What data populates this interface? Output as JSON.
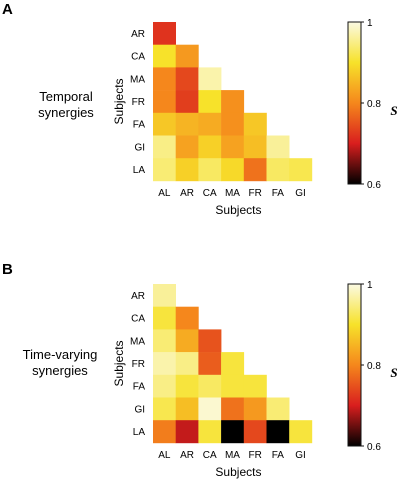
{
  "colorscale": {
    "stops": [
      {
        "v": 0.6,
        "color": "#000000"
      },
      {
        "v": 0.7,
        "color": "#d91e1e"
      },
      {
        "v": 0.8,
        "color": "#f5871c"
      },
      {
        "v": 0.9,
        "color": "#f7e22a"
      },
      {
        "v": 1.0,
        "color": "#fbfae3"
      }
    ]
  },
  "chart_data": [
    {
      "type": "heatmap",
      "panel": "A",
      "side_label": [
        "Temporal",
        "synergies"
      ],
      "xlabel": "Subjects",
      "ylabel": "Subjects",
      "x_categories": [
        "AL",
        "AR",
        "CA",
        "MA",
        "FR",
        "FA",
        "GI"
      ],
      "y_categories": [
        "AR",
        "CA",
        "MA",
        "FR",
        "FA",
        "GI",
        "LA"
      ],
      "values": [
        [
          0.72
        ],
        [
          0.9,
          0.82
        ],
        [
          0.8,
          0.74,
          0.97
        ],
        [
          0.8,
          0.73,
          0.9,
          0.81
        ],
        [
          0.87,
          0.85,
          0.84,
          0.81,
          0.87
        ],
        [
          0.95,
          0.83,
          0.88,
          0.83,
          0.86,
          0.96
        ],
        [
          0.94,
          0.88,
          0.93,
          0.89,
          0.78,
          0.93,
          0.92
        ]
      ],
      "colorbar": {
        "label": "S",
        "min": 0.6,
        "max": 1,
        "ticks": [
          "1",
          "0.8",
          "0.6"
        ]
      }
    },
    {
      "type": "heatmap",
      "panel": "B",
      "side_label": [
        "Time-varying",
        "synergies"
      ],
      "xlabel": "Subjects",
      "ylabel": "Subjects",
      "x_categories": [
        "AL",
        "AR",
        "CA",
        "MA",
        "FR",
        "FA",
        "GI"
      ],
      "y_categories": [
        "AR",
        "CA",
        "MA",
        "FR",
        "FA",
        "GI",
        "LA"
      ],
      "values": [
        [
          0.96
        ],
        [
          0.91,
          0.8
        ],
        [
          0.94,
          0.84,
          0.75
        ],
        [
          0.97,
          0.95,
          0.76,
          0.91
        ],
        [
          0.95,
          0.91,
          0.93,
          0.91,
          0.91
        ],
        [
          0.92,
          0.86,
          0.99,
          0.78,
          0.82,
          0.94
        ],
        [
          0.79,
          0.69,
          0.91,
          0.6,
          0.74,
          0.6,
          0.91
        ]
      ],
      "colorbar": {
        "label": "S",
        "min": 0.6,
        "max": 1,
        "ticks": [
          "1",
          "0.8",
          "0.6"
        ]
      }
    }
  ]
}
